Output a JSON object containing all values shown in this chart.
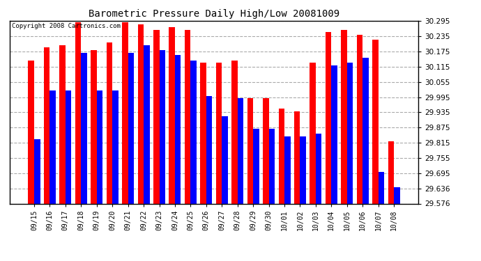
{
  "title": "Barometric Pressure Daily High/Low 20081009",
  "copyright": "Copyright 2008 Cartronics.com",
  "dates": [
    "09/15",
    "09/16",
    "09/17",
    "09/18",
    "09/19",
    "09/20",
    "09/21",
    "09/22",
    "09/23",
    "09/24",
    "09/25",
    "09/26",
    "09/27",
    "09/28",
    "09/29",
    "09/30",
    "10/01",
    "10/02",
    "10/03",
    "10/04",
    "10/05",
    "10/06",
    "10/07",
    "10/08"
  ],
  "highs": [
    30.14,
    30.19,
    30.2,
    30.29,
    30.18,
    30.21,
    30.29,
    30.28,
    30.26,
    30.27,
    30.26,
    30.13,
    30.13,
    30.14,
    29.99,
    29.99,
    29.95,
    29.94,
    30.13,
    30.25,
    30.26,
    30.24,
    30.22,
    29.82
  ],
  "lows": [
    29.83,
    30.02,
    30.02,
    30.17,
    30.02,
    30.02,
    30.17,
    30.2,
    30.18,
    30.16,
    30.14,
    30.0,
    29.92,
    29.99,
    29.87,
    29.87,
    29.84,
    29.84,
    29.85,
    30.12,
    30.13,
    30.15,
    29.7,
    29.64
  ],
  "high_color": "#FF0000",
  "low_color": "#0000FF",
  "bg_color": "#FFFFFF",
  "plot_bg_color": "#FFFFFF",
  "grid_color": "#AAAAAA",
  "ymin": 29.576,
  "ymax": 30.295,
  "yticks": [
    29.576,
    29.636,
    29.695,
    29.755,
    29.815,
    29.875,
    29.935,
    29.995,
    30.055,
    30.115,
    30.175,
    30.235,
    30.295
  ]
}
